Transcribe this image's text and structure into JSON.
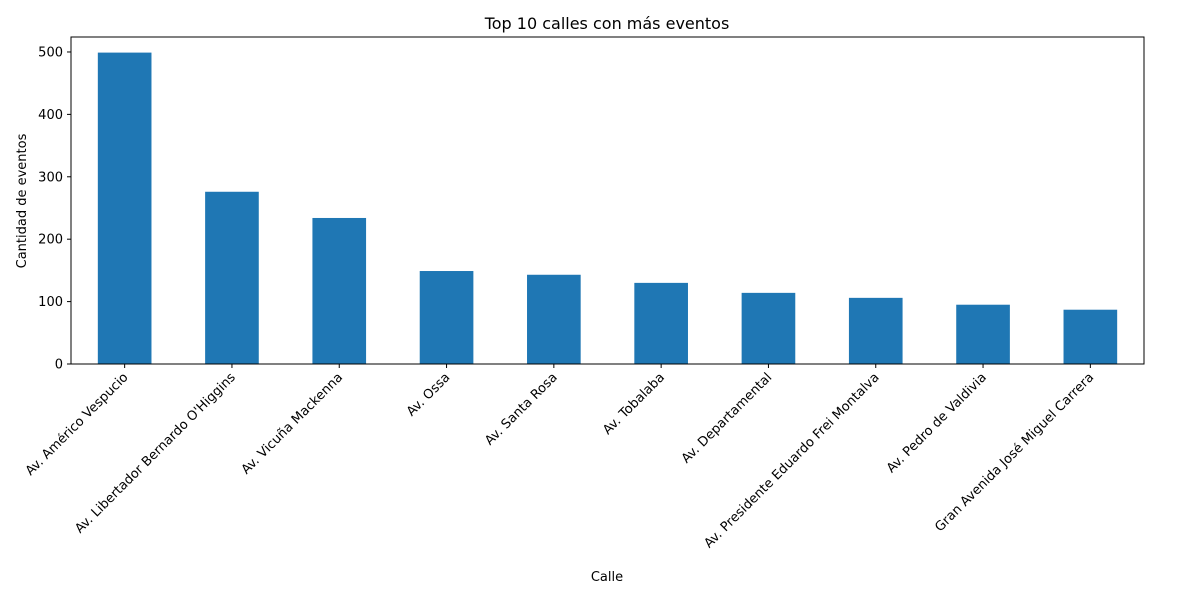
{
  "chart_data": {
    "type": "bar",
    "title": "Top 10 calles con más eventos",
    "xlabel": "Calle",
    "ylabel": "Cantidad de eventos",
    "categories": [
      "Av. Américo Vespucio",
      "Av. Libertador Bernardo O'Higgins",
      "Av. Vicuña Mackenna",
      "Av. Ossa",
      "Av. Santa Rosa",
      "Av. Tobalaba",
      "Av. Departamental",
      "Av. Presidente Eduardo Frei Montalva",
      "Av. Pedro de Valdivia",
      "Gran Avenida José Miguel Carrera"
    ],
    "values": [
      499,
      276,
      234,
      149,
      143,
      130,
      114,
      106,
      95,
      87
    ],
    "ylim": [
      0,
      524
    ],
    "yticks": [
      0,
      100,
      200,
      300,
      400,
      500
    ],
    "grid": false,
    "bar_color": "#1f77b4"
  }
}
